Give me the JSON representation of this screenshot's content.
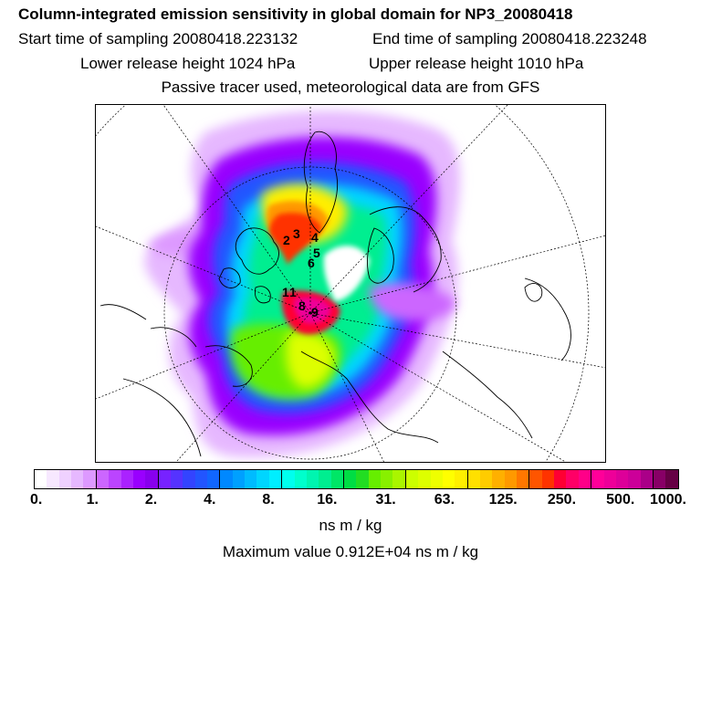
{
  "header": {
    "title": "Column-integrated emission sensitivity in global domain for NP3_20080418",
    "start_time": "Start time of sampling 20080418.223132",
    "end_time": "End time of sampling 20080418.223248",
    "lower_height": "Lower release height 1024 hPa",
    "upper_height": "Upper release height 1010 hPa",
    "tracer_note": "Passive tracer used, meteorological data are from GFS"
  },
  "map": {
    "projection": "polar stereographic (north pole)",
    "release_labels": [
      "2",
      "3",
      "4",
      "5",
      "6",
      "1",
      "1",
      "8",
      "9"
    ]
  },
  "colorbar": {
    "colors": [
      "#ffffff",
      "#f7e8ff",
      "#efd1ff",
      "#e6b8ff",
      "#dd99ff",
      "#cc66ff",
      "#bb44ff",
      "#aa22ff",
      "#9900ff",
      "#8800ee",
      "#7722ff",
      "#5533ff",
      "#3344ff",
      "#2255ff",
      "#1166ff",
      "#0088ff",
      "#00a0ff",
      "#00bbff",
      "#00d5ff",
      "#00eeff",
      "#00ffee",
      "#00ffcc",
      "#00f5b0",
      "#00ee90",
      "#00e666",
      "#00dd44",
      "#22dd22",
      "#66ee00",
      "#88f000",
      "#aaf500",
      "#ccff00",
      "#ddff00",
      "#eeff00",
      "#ffff00",
      "#fff000",
      "#ffe000",
      "#ffcc00",
      "#ffb000",
      "#ff9900",
      "#ff7700",
      "#ff5500",
      "#ff3300",
      "#ff0033",
      "#ff0066",
      "#ff0088",
      "#ff0099",
      "#ee0099",
      "#dd0099",
      "#cc0099",
      "#aa0088",
      "#880066",
      "#660044"
    ],
    "major_every": 5,
    "ticks": [
      "0.",
      "1.",
      "2.",
      "4.",
      "8.",
      "16.",
      "31.",
      "63.",
      "125.",
      "250.",
      "500.",
      "1000."
    ],
    "units": "ns m / kg"
  },
  "footer": {
    "max_value": "Maximum value  0.912E+04 ns m / kg"
  }
}
